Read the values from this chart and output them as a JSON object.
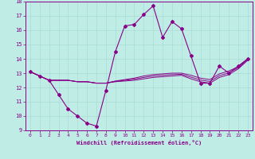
{
  "xlabel": "Windchill (Refroidissement éolien,°C)",
  "xlim": [
    -0.5,
    23.5
  ],
  "ylim": [
    9,
    18
  ],
  "xticks": [
    0,
    1,
    2,
    3,
    4,
    5,
    6,
    7,
    8,
    9,
    10,
    11,
    12,
    13,
    14,
    15,
    16,
    17,
    18,
    19,
    20,
    21,
    22,
    23
  ],
  "yticks": [
    9,
    10,
    11,
    12,
    13,
    14,
    15,
    16,
    17,
    18
  ],
  "bg_color": "#c0ece6",
  "line_color": "#880088",
  "grid_color": "#a8dcd6",
  "series_main": [
    13.1,
    12.8,
    12.5,
    11.5,
    10.5,
    10.0,
    9.5,
    9.3,
    11.8,
    14.5,
    16.3,
    16.4,
    17.1,
    17.7,
    15.5,
    16.6,
    16.1,
    14.2,
    12.3,
    12.3,
    13.5,
    13.0,
    13.5,
    14.0
  ],
  "series_flat": [
    [
      13.1,
      12.8,
      12.5,
      12.5,
      12.5,
      12.4,
      12.4,
      12.3,
      12.3,
      12.4,
      12.45,
      12.5,
      12.6,
      12.7,
      12.75,
      12.8,
      12.85,
      12.6,
      12.4,
      12.3,
      12.7,
      12.9,
      13.3,
      13.9
    ],
    [
      13.1,
      12.8,
      12.5,
      12.5,
      12.5,
      12.4,
      12.4,
      12.3,
      12.3,
      12.45,
      12.55,
      12.65,
      12.8,
      12.9,
      12.95,
      13.0,
      13.0,
      12.85,
      12.65,
      12.55,
      12.95,
      13.15,
      13.45,
      14.0
    ],
    [
      13.1,
      12.8,
      12.5,
      12.5,
      12.5,
      12.4,
      12.4,
      12.3,
      12.3,
      12.42,
      12.5,
      12.58,
      12.7,
      12.8,
      12.85,
      12.9,
      12.92,
      12.72,
      12.52,
      12.42,
      12.82,
      13.02,
      13.38,
      13.95
    ]
  ]
}
